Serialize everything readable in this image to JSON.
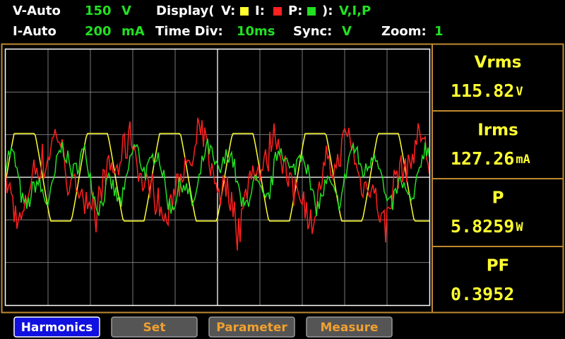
{
  "status": {
    "v_range": {
      "label": "V-Auto",
      "value": "150",
      "unit": "V"
    },
    "i_range": {
      "label": "I-Auto",
      "value": "200",
      "unit": "mA"
    },
    "display": {
      "label": "Display(",
      "v": "V:",
      "i": "I:",
      "p": "P:",
      "close": "):",
      "value": "V,I,P"
    },
    "time_div": {
      "label": "Time Div:",
      "value": "10ms"
    },
    "sync": {
      "label": "Sync:",
      "value": "V"
    },
    "zoom": {
      "label": "Zoom:",
      "value": "1"
    }
  },
  "measurements": [
    {
      "label": "Vrms",
      "value": "115.82",
      "unit": "V"
    },
    {
      "label": "Irms",
      "value": "127.26",
      "unit": "mA"
    },
    {
      "label": "P",
      "value": "5.8259",
      "unit": "W"
    },
    {
      "label": "PF",
      "value": "0.3952"
    }
  ],
  "buttons": [
    "Harmonics",
    "Set",
    "Parameter",
    "Measure"
  ]
}
